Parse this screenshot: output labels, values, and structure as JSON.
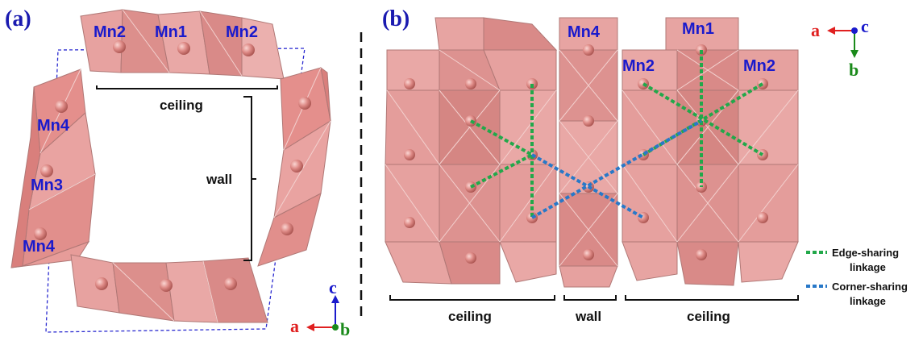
{
  "panels": {
    "a": {
      "label": "(a)",
      "sites": {
        "top_left": "Mn2",
        "top_center": "Mn1",
        "top_right": "Mn2",
        "left_upper": "Mn4",
        "left_middle": "Mn3",
        "left_lower": "Mn4"
      },
      "ceiling_label": "ceiling",
      "wall_label": "wall",
      "axes": {
        "vertical": "c",
        "horizontal": "a",
        "out_of_plane": "b"
      }
    },
    "b": {
      "label": "(b)",
      "sites": {
        "wall_top": "Mn4",
        "center_top": "Mn1",
        "left": "Mn2",
        "right": "Mn2"
      },
      "bottom_labels": {
        "left": "ceiling",
        "middle": "wall",
        "right": "ceiling"
      },
      "legend": {
        "edge_line1": "Edge-sharing",
        "edge_line2": "linkage",
        "corner_line1": "Corner-sharing",
        "corner_line2": "linkage"
      },
      "axes": {
        "horizontal": "a",
        "vertical": "b",
        "out_of_plane": "c"
      }
    }
  },
  "colors": {
    "polyhedron_fill": "#e9a3a1",
    "polyhedron_dark": "#d98a88",
    "polyhedron_edge": "#b07876",
    "atom": "#d4706c",
    "label_blue": "#1a1acc",
    "edge_sharing": "#22a84a",
    "corner_sharing": "#2878c8",
    "axis_a": "#e02020",
    "axis_b": "#1a8a1a",
    "axis_c": "#1a1acc"
  }
}
